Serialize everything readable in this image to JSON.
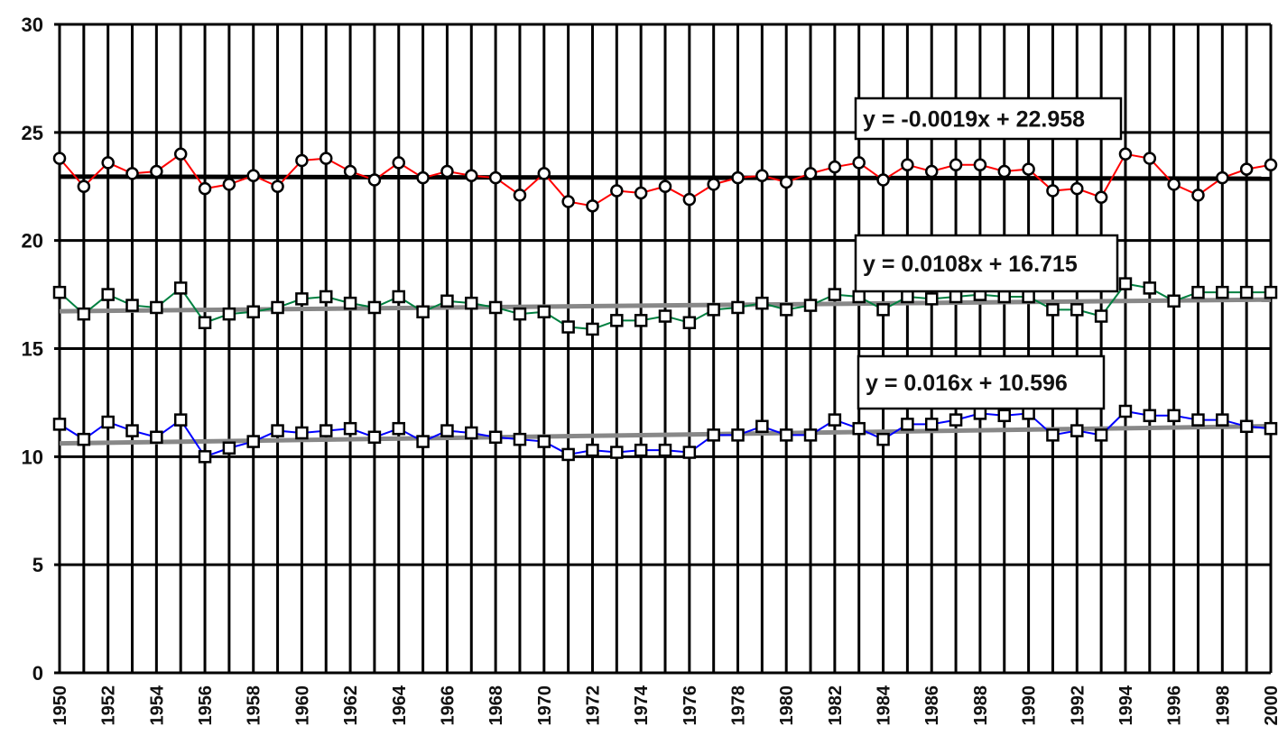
{
  "chart_data": {
    "type": "line",
    "title": "",
    "xlabel": "",
    "ylabel": "",
    "xlim": [
      1950,
      2000
    ],
    "ylim": [
      0,
      30
    ],
    "y_ticks": [
      0,
      5,
      10,
      15,
      20,
      25,
      30
    ],
    "x_tick_labels": [
      "1950",
      "1952",
      "1954",
      "1956",
      "1958",
      "1960",
      "1962",
      "1964",
      "1966",
      "1968",
      "1970",
      "1972",
      "1974",
      "1976",
      "1978",
      "1980",
      "1982",
      "1984",
      "1986",
      "1988",
      "1990",
      "1992",
      "1994",
      "1996",
      "1998",
      "2000"
    ],
    "grid": true,
    "x": [
      1950,
      1951,
      1952,
      1953,
      1954,
      1955,
      1956,
      1957,
      1958,
      1959,
      1960,
      1961,
      1962,
      1963,
      1964,
      1965,
      1966,
      1967,
      1968,
      1969,
      1970,
      1971,
      1972,
      1973,
      1974,
      1975,
      1976,
      1977,
      1978,
      1979,
      1980,
      1981,
      1982,
      1983,
      1984,
      1985,
      1986,
      1987,
      1988,
      1989,
      1990,
      1991,
      1992,
      1993,
      1994,
      1995,
      1996,
      1997,
      1998,
      1999,
      2000
    ],
    "series": [
      {
        "color": "#ff0000",
        "marker": "circle",
        "values": [
          23.8,
          22.5,
          23.6,
          23.1,
          23.2,
          24.0,
          22.4,
          22.6,
          23.0,
          22.5,
          23.7,
          23.8,
          23.2,
          22.8,
          23.6,
          22.9,
          23.2,
          23.0,
          22.9,
          22.1,
          23.1,
          21.8,
          21.6,
          22.3,
          22.2,
          22.5,
          21.9,
          22.6,
          22.9,
          23.0,
          22.7,
          23.1,
          23.4,
          23.6,
          22.8,
          23.5,
          23.2,
          23.5,
          23.5,
          23.2,
          23.3,
          22.3,
          22.4,
          22.0,
          24.0,
          23.8,
          22.6,
          22.1,
          22.9,
          23.3,
          23.5
        ],
        "trend_equation": "y = -0.0019x + 22.958",
        "trend_start": 22.958,
        "trend_slope": -0.0019
      },
      {
        "color": "#008040",
        "marker": "square",
        "values": [
          17.6,
          16.6,
          17.5,
          17.0,
          16.9,
          17.8,
          16.2,
          16.6,
          16.7,
          16.9,
          17.3,
          17.4,
          17.1,
          16.9,
          17.4,
          16.7,
          17.2,
          17.1,
          16.9,
          16.6,
          16.7,
          16.0,
          15.9,
          16.3,
          16.3,
          16.5,
          16.2,
          16.8,
          16.9,
          17.1,
          16.8,
          17.0,
          17.5,
          17.4,
          16.8,
          17.4,
          17.3,
          17.4,
          17.5,
          17.4,
          17.4,
          16.8,
          16.8,
          16.5,
          18.0,
          17.8,
          17.2,
          17.6,
          17.6,
          17.6,
          17.6
        ],
        "trend_equation": "y = 0.0108x + 16.715",
        "trend_start": 16.715,
        "trend_slope": 0.0108
      },
      {
        "color": "#0000ff",
        "marker": "square",
        "values": [
          11.5,
          10.8,
          11.6,
          11.2,
          10.9,
          11.7,
          10.0,
          10.4,
          10.7,
          11.2,
          11.1,
          11.2,
          11.3,
          10.9,
          11.3,
          10.7,
          11.2,
          11.1,
          10.9,
          10.8,
          10.7,
          10.1,
          10.3,
          10.2,
          10.3,
          10.3,
          10.2,
          11.0,
          11.0,
          11.4,
          11.0,
          11.0,
          11.7,
          11.3,
          10.8,
          11.5,
          11.5,
          11.7,
          12.0,
          11.9,
          12.0,
          11.0,
          11.2,
          11.0,
          12.1,
          11.9,
          11.9,
          11.7,
          11.7,
          11.4,
          11.3
        ],
        "trend_equation": "y = 0.016x + 10.596",
        "trend_start": 10.596,
        "trend_slope": 0.016
      }
    ]
  }
}
